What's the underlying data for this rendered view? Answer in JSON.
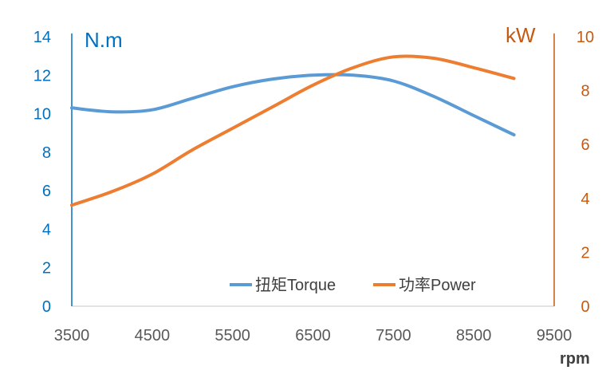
{
  "chart_data": {
    "type": "line",
    "x": [
      3500,
      4000,
      4500,
      5000,
      5500,
      6000,
      6500,
      7000,
      7500,
      8000,
      8500,
      9000
    ],
    "series": [
      {
        "name": "扭矩Torque",
        "axis": "left",
        "color": "#5b9bd5",
        "values": [
          10.3,
          10.1,
          10.2,
          10.8,
          11.4,
          11.8,
          12.0,
          12.0,
          11.7,
          10.9,
          9.9,
          8.9
        ]
      },
      {
        "name": "功率Power",
        "axis": "right",
        "color": "#ed7d31",
        "values": [
          3.75,
          4.25,
          4.9,
          5.8,
          6.6,
          7.4,
          8.2,
          8.85,
          9.25,
          9.2,
          8.85,
          8.45
        ]
      }
    ],
    "x_ticks": [
      "3500",
      "4500",
      "5500",
      "6500",
      "7500",
      "8500",
      "9500"
    ],
    "xlim": [
      3500,
      9500
    ],
    "y_left_ticks": [
      "0",
      "2",
      "4",
      "6",
      "8",
      "10",
      "12",
      "14"
    ],
    "y_left_lim": [
      0,
      14
    ],
    "y_left_unit": "N.m",
    "y_left_color": "#0070c0",
    "y_right_ticks": [
      "0",
      "2",
      "4",
      "6",
      "8",
      "10"
    ],
    "y_right_lim": [
      0,
      10
    ],
    "y_right_unit": "kW",
    "y_right_color": "#c55a11",
    "x_unit": "rpm",
    "grid": false,
    "legend_position": "bottom-right"
  }
}
